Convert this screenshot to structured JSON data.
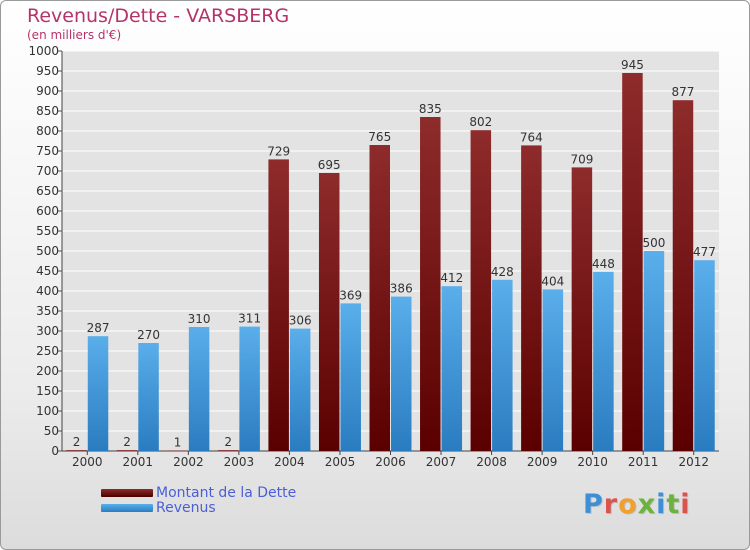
{
  "title": "Revenus/Dette - VARSBERG",
  "subtitle": "(en milliers d'€)",
  "logo_text": "Proxiti",
  "colors": {
    "title": "#b5336b",
    "debt": "#7a1616",
    "revenue": "#3f97d9",
    "legend_text": "#4a5fd6",
    "grid": "#ffffff",
    "plot_bg": "#e3e3e3"
  },
  "chart_data": {
    "type": "bar",
    "title": "Revenus/Dette - VARSBERG",
    "subtitle": "(en milliers d'€)",
    "categories": [
      "2000",
      "2001",
      "2002",
      "2003",
      "2004",
      "2005",
      "2006",
      "2007",
      "2008",
      "2009",
      "2010",
      "2011",
      "2012"
    ],
    "series": [
      {
        "name": "Montant de la Dette",
        "color": "#7a1616",
        "values": [
          2,
          2,
          1,
          2,
          729,
          695,
          765,
          835,
          802,
          764,
          709,
          945,
          877
        ]
      },
      {
        "name": "Revenus",
        "color": "#3f97d9",
        "values": [
          287,
          270,
          310,
          311,
          306,
          369,
          386,
          412,
          428,
          404,
          448,
          500,
          477
        ]
      }
    ],
    "ylim": [
      0,
      1000
    ],
    "y_ticks": [
      "0",
      "50",
      "100",
      "150",
      "200",
      "250",
      "300",
      "350",
      "400",
      "450",
      "500",
      "550",
      "600",
      "650",
      "700",
      "750",
      "800",
      "850",
      "900",
      "950",
      "1000"
    ],
    "grid": true,
    "legend_position": "bottom-left"
  }
}
